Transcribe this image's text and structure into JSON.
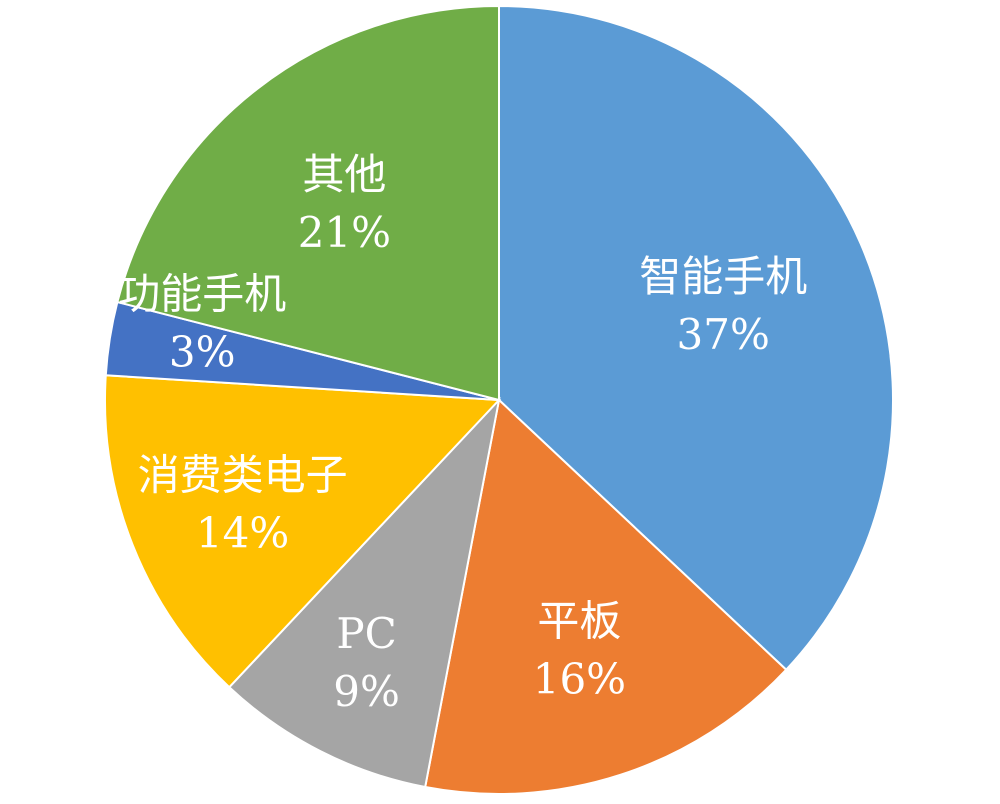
{
  "chart_data": {
    "type": "pie",
    "title": "",
    "unit": "%",
    "start_angle_deg": 0,
    "direction": "clockwise",
    "slices": [
      {
        "label": "智能手机",
        "value": 37,
        "value_label": "37%",
        "color": "#5B9BD5"
      },
      {
        "label": "平板",
        "value": 16,
        "value_label": "16%",
        "color": "#ED7D31"
      },
      {
        "label": "PC",
        "value": 9,
        "value_label": "9%",
        "color": "#A5A5A5"
      },
      {
        "label": "消费类电子",
        "value": 14,
        "value_label": "14%",
        "color": "#FFC000"
      },
      {
        "label": "功能手机",
        "value": 3,
        "value_label": "3%",
        "color": "#4472C4"
      },
      {
        "label": "其他",
        "value": 21,
        "value_label": "21%",
        "color": "#70AD47"
      }
    ]
  }
}
